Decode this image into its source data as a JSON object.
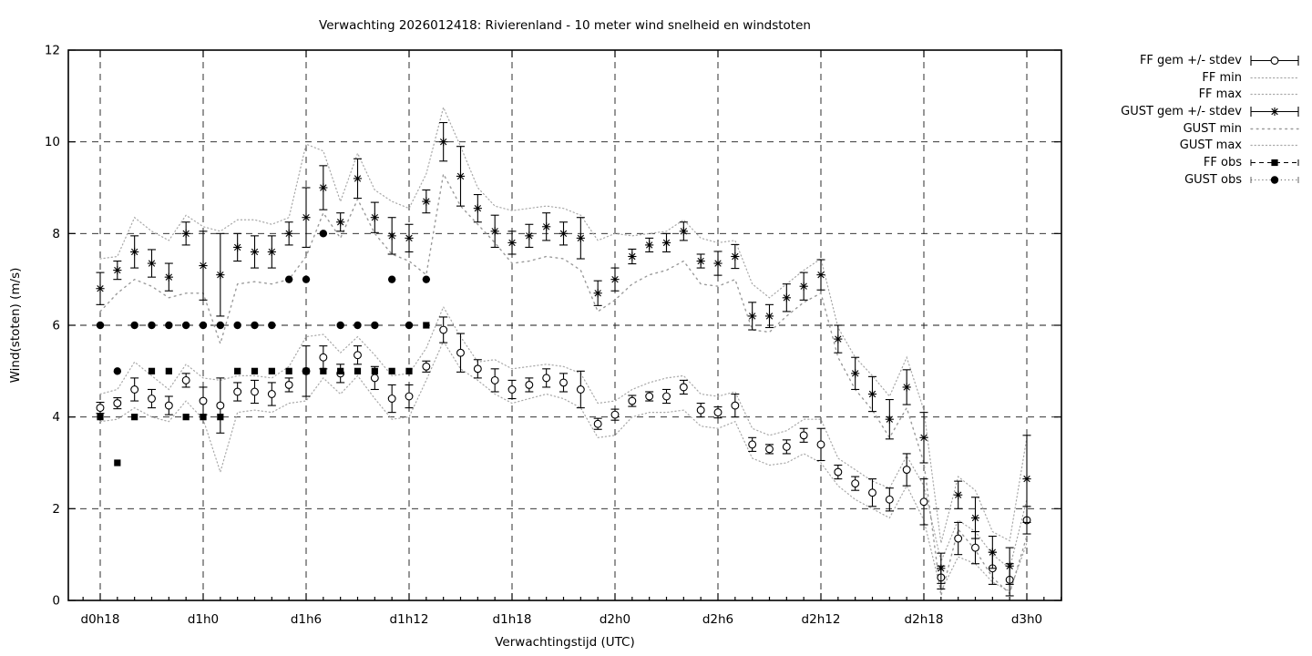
{
  "colors": {
    "background": "#ffffff",
    "foreground": "#000000",
    "envelope_dotted": "#a8a8a8"
  },
  "chart_data": {
    "type": "scatter",
    "title": "Verwachting 2026012418: Rivierenland - 10 meter wind snelheid en windstoten",
    "xlabel": "Verwachtingstijd (UTC)",
    "ylabel": "Wind(stoten) (m/s)",
    "ylim": [
      0,
      12
    ],
    "ytick_step": 2,
    "grid": true,
    "legend_position": "outside-right",
    "x_domain_hours": [
      -1.9,
      56.1
    ],
    "x_hours_range": [
      0,
      54
    ],
    "n_points": 55,
    "x_ticks": {
      "hours": [
        0,
        6,
        12,
        18,
        24,
        30,
        36,
        42,
        48,
        54
      ],
      "labels": [
        "d0h18",
        "d1h0",
        "d1h6",
        "d1h12",
        "d1h18",
        "d2h0",
        "d2h6",
        "d2h12",
        "d2h18",
        "d3h0"
      ]
    },
    "series": [
      {
        "name": "FF gem +/- stdev",
        "kind": "errorbars",
        "marker": "open-circle",
        "values": [
          4.2,
          4.3,
          4.6,
          4.4,
          4.25,
          4.8,
          4.35,
          4.25,
          4.55,
          4.55,
          4.5,
          4.7,
          5.0,
          5.3,
          4.95,
          5.35,
          4.85,
          4.4,
          4.45,
          5.1,
          5.9,
          5.4,
          5.05,
          4.8,
          4.6,
          4.7,
          4.85,
          4.75,
          4.6,
          3.85,
          4.05,
          4.35,
          4.45,
          4.45,
          4.65,
          4.15,
          4.1,
          4.25,
          3.4,
          3.3,
          3.35,
          3.6,
          3.4,
          2.8,
          2.55,
          2.35,
          2.2,
          2.85,
          2.15,
          0.5,
          1.35,
          1.15,
          0.7,
          0.45,
          1.75
        ],
        "stdev": [
          0.12,
          0.12,
          0.25,
          0.2,
          0.2,
          0.15,
          0.3,
          0.6,
          0.2,
          0.25,
          0.25,
          0.15,
          0.55,
          0.25,
          0.2,
          0.2,
          0.25,
          0.3,
          0.25,
          0.12,
          0.28,
          0.42,
          0.2,
          0.25,
          0.2,
          0.15,
          0.2,
          0.2,
          0.4,
          0.12,
          0.12,
          0.12,
          0.1,
          0.15,
          0.15,
          0.15,
          0.12,
          0.25,
          0.15,
          0.1,
          0.15,
          0.15,
          0.35,
          0.15,
          0.15,
          0.3,
          0.25,
          0.35,
          0.5,
          0.25,
          0.35,
          0.35,
          0.35,
          0.35,
          0.3
        ]
      },
      {
        "name": "FF min",
        "kind": "line",
        "style": "dots-fine",
        "values": [
          3.9,
          3.95,
          4.2,
          4.0,
          3.9,
          4.35,
          3.95,
          2.8,
          4.1,
          4.15,
          4.1,
          4.3,
          4.35,
          4.85,
          4.5,
          4.9,
          4.4,
          3.95,
          4.0,
          4.8,
          5.65,
          5.05,
          4.8,
          4.5,
          4.3,
          4.4,
          4.5,
          4.4,
          4.2,
          3.55,
          3.6,
          4.0,
          4.1,
          4.1,
          4.15,
          3.8,
          3.75,
          3.9,
          3.1,
          2.95,
          3.0,
          3.2,
          3.0,
          2.5,
          2.2,
          2.0,
          1.8,
          2.5,
          1.75,
          0.2,
          0.95,
          0.8,
          0.4,
          0.2,
          1.25
        ]
      },
      {
        "name": "FF max",
        "kind": "line",
        "style": "dots-fine",
        "values": [
          4.5,
          4.6,
          5.2,
          4.9,
          4.6,
          5.15,
          4.85,
          4.8,
          4.9,
          4.9,
          4.85,
          5.1,
          5.75,
          5.8,
          5.4,
          5.75,
          5.35,
          4.9,
          4.95,
          5.5,
          6.4,
          5.75,
          5.2,
          5.25,
          5.05,
          5.1,
          5.15,
          5.1,
          4.95,
          4.3,
          4.35,
          4.6,
          4.75,
          4.85,
          4.9,
          4.5,
          4.45,
          4.55,
          3.75,
          3.6,
          3.7,
          3.95,
          3.95,
          3.1,
          2.85,
          2.6,
          2.45,
          3.15,
          2.5,
          0.85,
          1.75,
          1.5,
          1.0,
          0.7,
          2.2
        ]
      },
      {
        "name": "GUST gem +/- stdev",
        "kind": "errorbars",
        "marker": "asterisk",
        "values": [
          6.8,
          7.2,
          7.6,
          7.35,
          7.05,
          8.0,
          7.3,
          7.1,
          7.7,
          7.6,
          7.6,
          8.0,
          8.35,
          9.0,
          8.25,
          9.2,
          8.35,
          7.95,
          7.9,
          8.7,
          10.0,
          9.25,
          8.55,
          8.05,
          7.8,
          7.95,
          8.15,
          8.0,
          7.9,
          6.7,
          7.0,
          7.5,
          7.75,
          7.8,
          8.05,
          7.4,
          7.35,
          7.5,
          6.2,
          6.2,
          6.6,
          6.85,
          7.1,
          5.7,
          4.95,
          4.5,
          3.95,
          4.65,
          3.55,
          0.7,
          2.3,
          1.8,
          1.05,
          0.75,
          2.65
        ],
        "stdev": [
          0.35,
          0.2,
          0.35,
          0.3,
          0.3,
          0.25,
          0.75,
          0.9,
          0.3,
          0.35,
          0.35,
          0.25,
          0.65,
          0.48,
          0.2,
          0.43,
          0.33,
          0.4,
          0.3,
          0.25,
          0.42,
          0.65,
          0.3,
          0.35,
          0.25,
          0.25,
          0.3,
          0.25,
          0.45,
          0.27,
          0.25,
          0.16,
          0.15,
          0.2,
          0.2,
          0.15,
          0.26,
          0.26,
          0.3,
          0.25,
          0.3,
          0.3,
          0.33,
          0.3,
          0.35,
          0.38,
          0.43,
          0.38,
          0.55,
          0.33,
          0.3,
          0.45,
          0.35,
          0.4,
          0.95
        ]
      },
      {
        "name": "GUST min",
        "kind": "line",
        "style": "dots-sparse",
        "values": [
          6.3,
          6.7,
          7.0,
          6.85,
          6.6,
          6.7,
          6.7,
          5.6,
          6.9,
          6.95,
          6.9,
          7.0,
          7.5,
          8.45,
          7.9,
          8.75,
          8.0,
          7.55,
          7.4,
          7.1,
          9.3,
          8.6,
          8.2,
          7.8,
          7.35,
          7.4,
          7.5,
          7.45,
          7.2,
          6.3,
          6.55,
          6.9,
          7.1,
          7.2,
          7.4,
          6.9,
          6.85,
          7.0,
          5.9,
          5.85,
          6.2,
          6.5,
          6.7,
          5.3,
          4.6,
          4.15,
          3.55,
          4.2,
          3.0,
          0.1,
          1.55,
          1.1,
          0.5,
          0.15,
          1.4
        ]
      },
      {
        "name": "GUST max",
        "kind": "line",
        "style": "dots-fine",
        "values": [
          7.45,
          7.5,
          8.35,
          8.05,
          7.85,
          8.4,
          8.15,
          8.05,
          8.3,
          8.3,
          8.2,
          8.35,
          9.95,
          9.8,
          8.7,
          9.75,
          8.95,
          8.7,
          8.55,
          9.3,
          10.75,
          9.9,
          9.0,
          8.6,
          8.5,
          8.55,
          8.6,
          8.55,
          8.4,
          7.85,
          8.0,
          7.95,
          8.0,
          8.05,
          8.3,
          7.9,
          7.8,
          7.85,
          6.9,
          6.6,
          6.9,
          7.2,
          7.45,
          5.95,
          5.3,
          4.9,
          4.45,
          5.3,
          4.15,
          1.25,
          2.7,
          2.4,
          1.5,
          1.3,
          3.55
        ]
      },
      {
        "name": "FF obs",
        "kind": "points",
        "marker": "filled-square",
        "style": "dash",
        "values": [
          4,
          3,
          4,
          5,
          5,
          4,
          4,
          4,
          5,
          5,
          5,
          5,
          5,
          5,
          5,
          5,
          5,
          5,
          5,
          6,
          null,
          null,
          null,
          null,
          null,
          null,
          null,
          null,
          null,
          null,
          null,
          null,
          null,
          null,
          null,
          null,
          null,
          null,
          null,
          null,
          null,
          null,
          null,
          null,
          null,
          null,
          null,
          null,
          null,
          null,
          null,
          null,
          null,
          null,
          null
        ]
      },
      {
        "name": "GUST obs",
        "kind": "points",
        "marker": "filled-circle",
        "style": "dots",
        "values": [
          6,
          5,
          6,
          6,
          6,
          6,
          6,
          6,
          6,
          6,
          6,
          7,
          7,
          8,
          6,
          6,
          6,
          7,
          6,
          7,
          null,
          null,
          null,
          null,
          null,
          null,
          null,
          null,
          null,
          null,
          null,
          null,
          null,
          null,
          null,
          null,
          null,
          null,
          null,
          null,
          null,
          null,
          null,
          null,
          null,
          null,
          null,
          null,
          null,
          null,
          null,
          null,
          null,
          null,
          null
        ]
      }
    ]
  }
}
